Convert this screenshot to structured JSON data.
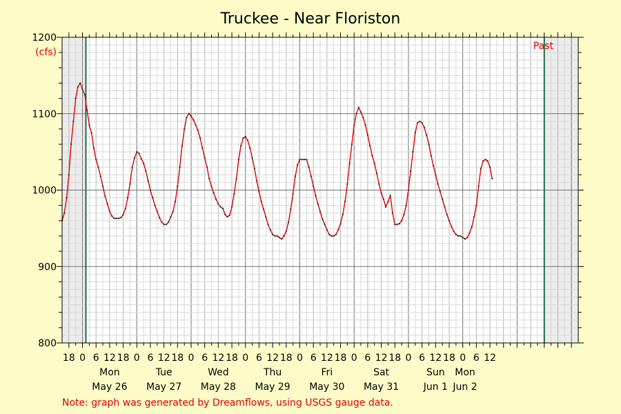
{
  "chart_data": {
    "type": "line",
    "title": "Truckee - Near Floriston",
    "y_unit_label": "(cfs)",
    "past_label": "Past",
    "note": "Note: graph was generated by Dreamflows, using USGS gauge data.",
    "ylim": [
      800,
      1200
    ],
    "y_ticks": [
      800,
      900,
      1000,
      1100,
      1200
    ],
    "x_range_hours": [
      -9,
      219
    ],
    "hour_tick_labels": [
      "0",
      "6",
      "12",
      "18"
    ],
    "trailing_hour_labels": [
      "0",
      "6",
      "12"
    ],
    "days": [
      {
        "weekday": "Mon",
        "date": "May 26"
      },
      {
        "weekday": "Tue",
        "date": "May 27"
      },
      {
        "weekday": "Wed",
        "date": "May 28"
      },
      {
        "weekday": "Thu",
        "date": "May 29"
      },
      {
        "weekday": "Fri",
        "date": "May 30"
      },
      {
        "weekday": "Sat",
        "date": "May 31"
      },
      {
        "weekday": "Sun",
        "date": "Jun 1"
      },
      {
        "weekday": "Mon",
        "date": "Jun 2"
      }
    ],
    "shaded_ranges_hours": [
      [
        -9,
        1.5
      ],
      [
        204,
        219
      ]
    ],
    "marker_lines_hours": [
      1.5,
      204
    ],
    "series": [
      {
        "color": "#e00000",
        "points": [
          [
            -9,
            960
          ],
          [
            -8,
            970
          ],
          [
            -7,
            990
          ],
          [
            -6,
            1020
          ],
          [
            -5,
            1060
          ],
          [
            -4,
            1090
          ],
          [
            -3,
            1120
          ],
          [
            -2,
            1135
          ],
          [
            -1,
            1140
          ],
          [
            0,
            1132
          ],
          [
            1,
            1125
          ],
          [
            2,
            1105
          ],
          [
            3,
            1085
          ],
          [
            4,
            1075
          ],
          [
            5,
            1055
          ],
          [
            6,
            1040
          ],
          [
            7,
            1030
          ],
          [
            8,
            1018
          ],
          [
            9,
            1005
          ],
          [
            10,
            992
          ],
          [
            11,
            982
          ],
          [
            12,
            972
          ],
          [
            13,
            966
          ],
          [
            14,
            963
          ],
          [
            15,
            963
          ],
          [
            16,
            963
          ],
          [
            17,
            964
          ],
          [
            18,
            968
          ],
          [
            19,
            976
          ],
          [
            20,
            990
          ],
          [
            21,
            1008
          ],
          [
            22,
            1030
          ],
          [
            23,
            1042
          ],
          [
            24,
            1050
          ],
          [
            25,
            1048
          ],
          [
            26,
            1041
          ],
          [
            27,
            1035
          ],
          [
            28,
            1025
          ],
          [
            29,
            1012
          ],
          [
            30,
            1000
          ],
          [
            31,
            990
          ],
          [
            32,
            980
          ],
          [
            33,
            972
          ],
          [
            34,
            964
          ],
          [
            35,
            958
          ],
          [
            36,
            955
          ],
          [
            37,
            955
          ],
          [
            38,
            958
          ],
          [
            39,
            965
          ],
          [
            40,
            972
          ],
          [
            41,
            985
          ],
          [
            42,
            1005
          ],
          [
            43,
            1030
          ],
          [
            44,
            1058
          ],
          [
            45,
            1080
          ],
          [
            46,
            1095
          ],
          [
            47,
            1100
          ],
          [
            48,
            1097
          ],
          [
            49,
            1092
          ],
          [
            50,
            1085
          ],
          [
            51,
            1078
          ],
          [
            52,
            1068
          ],
          [
            53,
            1055
          ],
          [
            54,
            1042
          ],
          [
            55,
            1030
          ],
          [
            56,
            1015
          ],
          [
            57,
            1005
          ],
          [
            58,
            996
          ],
          [
            59,
            988
          ],
          [
            60,
            982
          ],
          [
            61,
            978
          ],
          [
            62,
            976
          ],
          [
            63,
            968
          ],
          [
            64,
            965
          ],
          [
            65,
            967
          ],
          [
            66,
            978
          ],
          [
            67,
            995
          ],
          [
            68,
            1015
          ],
          [
            69,
            1040
          ],
          [
            70,
            1058
          ],
          [
            71,
            1068
          ],
          [
            72,
            1070
          ],
          [
            73,
            1065
          ],
          [
            74,
            1055
          ],
          [
            75,
            1042
          ],
          [
            76,
            1028
          ],
          [
            77,
            1012
          ],
          [
            78,
            998
          ],
          [
            79,
            985
          ],
          [
            80,
            975
          ],
          [
            81,
            965
          ],
          [
            82,
            955
          ],
          [
            83,
            948
          ],
          [
            84,
            942
          ],
          [
            85,
            940
          ],
          [
            86,
            940
          ],
          [
            87,
            938
          ],
          [
            88,
            936
          ],
          [
            89,
            940
          ],
          [
            90,
            946
          ],
          [
            91,
            958
          ],
          [
            92,
            975
          ],
          [
            93,
            995
          ],
          [
            94,
            1018
          ],
          [
            95,
            1033
          ],
          [
            96,
            1040
          ],
          [
            97,
            1040
          ],
          [
            98,
            1040
          ],
          [
            99,
            1040
          ],
          [
            100,
            1030
          ],
          [
            101,
            1018
          ],
          [
            102,
            1005
          ],
          [
            103,
            993
          ],
          [
            104,
            982
          ],
          [
            105,
            972
          ],
          [
            106,
            962
          ],
          [
            107,
            955
          ],
          [
            108,
            948
          ],
          [
            109,
            942
          ],
          [
            110,
            940
          ],
          [
            111,
            940
          ],
          [
            112,
            942
          ],
          [
            113,
            948
          ],
          [
            114,
            956
          ],
          [
            115,
            968
          ],
          [
            116,
            985
          ],
          [
            117,
            1008
          ],
          [
            118,
            1035
          ],
          [
            119,
            1060
          ],
          [
            120,
            1085
          ],
          [
            121,
            1100
          ],
          [
            122,
            1108
          ],
          [
            123,
            1102
          ],
          [
            124,
            1095
          ],
          [
            125,
            1085
          ],
          [
            126,
            1072
          ],
          [
            127,
            1058
          ],
          [
            128,
            1045
          ],
          [
            129,
            1035
          ],
          [
            130,
            1022
          ],
          [
            131,
            1008
          ],
          [
            132,
            996
          ],
          [
            133,
            988
          ],
          [
            134,
            978
          ],
          [
            135,
            985
          ],
          [
            136,
            993
          ],
          [
            137,
            970
          ],
          [
            138,
            955
          ],
          [
            139,
            955
          ],
          [
            140,
            956
          ],
          [
            141,
            960
          ],
          [
            142,
            968
          ],
          [
            143,
            980
          ],
          [
            144,
            1000
          ],
          [
            145,
            1025
          ],
          [
            146,
            1050
          ],
          [
            147,
            1075
          ],
          [
            148,
            1088
          ],
          [
            149,
            1090
          ],
          [
            150,
            1088
          ],
          [
            151,
            1082
          ],
          [
            152,
            1072
          ],
          [
            153,
            1060
          ],
          [
            154,
            1045
          ],
          [
            155,
            1032
          ],
          [
            156,
            1020
          ],
          [
            157,
            1008
          ],
          [
            158,
            998
          ],
          [
            159,
            988
          ],
          [
            160,
            978
          ],
          [
            161,
            968
          ],
          [
            162,
            960
          ],
          [
            163,
            952
          ],
          [
            164,
            946
          ],
          [
            165,
            942
          ],
          [
            166,
            940
          ],
          [
            167,
            940
          ],
          [
            168,
            938
          ],
          [
            169,
            936
          ],
          [
            170,
            938
          ],
          [
            171,
            944
          ],
          [
            172,
            952
          ],
          [
            173,
            965
          ],
          [
            174,
            980
          ],
          [
            175,
            1005
          ],
          [
            176,
            1028
          ],
          [
            177,
            1038
          ],
          [
            178,
            1040
          ],
          [
            179,
            1038
          ],
          [
            180,
            1030
          ],
          [
            181,
            1015
          ]
        ]
      }
    ]
  }
}
